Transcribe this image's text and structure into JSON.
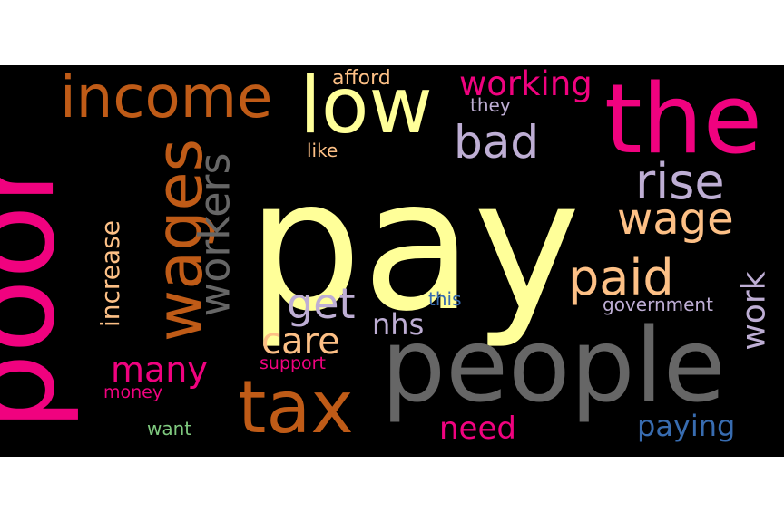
{
  "palette": {
    "background": "#000000",
    "page": "#ffffff",
    "yellow": "#ffff99",
    "pink": "#f0027f",
    "orange": "#bf5b17",
    "gray": "#666666",
    "lavender": "#beaed4",
    "peach": "#fdc086",
    "blue": "#386cb0",
    "green": "#7fc97f"
  },
  "words": [
    {
      "id": "pay",
      "text": "pay",
      "color": "#ffff99"
    },
    {
      "id": "poor",
      "text": "poor",
      "color": "#f0027f"
    },
    {
      "id": "people",
      "text": "people",
      "color": "#666666"
    },
    {
      "id": "the",
      "text": "the",
      "color": "#f0027f"
    },
    {
      "id": "low",
      "text": "low",
      "color": "#ffff99"
    },
    {
      "id": "income",
      "text": "income",
      "color": "#bf5b17"
    },
    {
      "id": "wages",
      "text": "wages",
      "color": "#bf5b17"
    },
    {
      "id": "tax",
      "text": "tax",
      "color": "#bf5b17"
    },
    {
      "id": "workers",
      "text": "workers",
      "color": "#666666"
    },
    {
      "id": "wage",
      "text": "wage",
      "color": "#fdc086"
    },
    {
      "id": "rise",
      "text": "rise",
      "color": "#beaed4"
    },
    {
      "id": "paid",
      "text": "paid",
      "color": "#fdc086"
    },
    {
      "id": "bad",
      "text": "bad",
      "color": "#beaed4"
    },
    {
      "id": "working",
      "text": "working",
      "color": "#f0027f"
    },
    {
      "id": "get",
      "text": "get",
      "color": "#beaed4"
    },
    {
      "id": "care",
      "text": "care",
      "color": "#fdc086"
    },
    {
      "id": "many",
      "text": "many",
      "color": "#f0027f"
    },
    {
      "id": "work",
      "text": "work",
      "color": "#beaed4"
    },
    {
      "id": "increase",
      "text": "increase",
      "color": "#fdc086"
    },
    {
      "id": "nhs",
      "text": "nhs",
      "color": "#beaed4"
    },
    {
      "id": "need",
      "text": "need",
      "color": "#f0027f"
    },
    {
      "id": "paying",
      "text": "paying",
      "color": "#386cb0"
    },
    {
      "id": "afford",
      "text": "afford",
      "color": "#fdc086"
    },
    {
      "id": "they",
      "text": "they",
      "color": "#beaed4"
    },
    {
      "id": "like",
      "text": "like",
      "color": "#fdc086"
    },
    {
      "id": "this",
      "text": "this",
      "color": "#386cb0"
    },
    {
      "id": "government",
      "text": "government",
      "color": "#beaed4"
    },
    {
      "id": "support",
      "text": "support",
      "color": "#f0027f"
    },
    {
      "id": "money",
      "text": "money",
      "color": "#f0027f"
    },
    {
      "id": "want",
      "text": "want",
      "color": "#7fc97f"
    }
  ]
}
